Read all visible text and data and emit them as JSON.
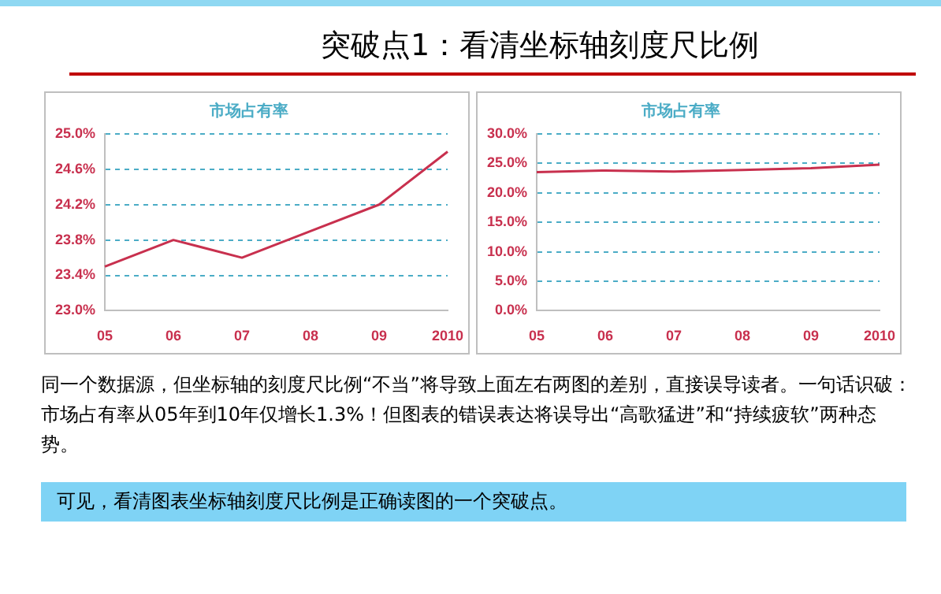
{
  "chart_data": [
    {
      "type": "other",
      "title": "突破点1：看清坐标轴刻度尺比例"
    },
    {
      "type": "line",
      "title": "市场占有率",
      "categories": [
        "05",
        "06",
        "07",
        "08",
        "09",
        "2010"
      ],
      "series": [
        {
          "color": "#c8304e",
          "values": [
            23.5,
            23.8,
            23.6,
            23.9,
            24.2,
            24.8
          ]
        }
      ],
      "ylim": [
        23.0,
        25.0
      ],
      "yticks": [
        {
          "value": 23.0,
          "label": "23.0%"
        },
        {
          "value": 23.4,
          "label": "23.4%"
        },
        {
          "value": 23.8,
          "label": "23.8%"
        },
        {
          "value": 24.2,
          "label": "24.2%"
        },
        {
          "value": 24.6,
          "label": "24.6%"
        },
        {
          "value": 25.0,
          "label": "25.0%"
        }
      ],
      "grid": "y",
      "legend": false,
      "marker": "none",
      "line_style": "solid"
    },
    {
      "type": "line",
      "title": "市场占有率",
      "categories": [
        "05",
        "06",
        "07",
        "08",
        "09",
        "2010"
      ],
      "series": [
        {
          "color": "#c8304e",
          "values": [
            23.5,
            23.8,
            23.6,
            23.9,
            24.2,
            24.8
          ]
        }
      ],
      "ylim": [
        0,
        30
      ],
      "yticks": [
        {
          "value": 0,
          "label": "0.0%"
        },
        {
          "value": 5,
          "label": "5.0%"
        },
        {
          "value": 10,
          "label": "10.0%"
        },
        {
          "value": 15,
          "label": "15.0%"
        },
        {
          "value": 20,
          "label": "20.0%"
        },
        {
          "value": 25,
          "label": "25.0%"
        },
        {
          "value": 30,
          "label": "30.0%"
        }
      ],
      "grid": "y",
      "legend": false,
      "marker": "none",
      "line_style": "solid"
    },
    {
      "type": "other",
      "annotations": [
        "同一个数据源，但坐标轴的刻度尺比例“不当”将导致上面左右两图的差别，直接误导读者。一句话识破：市场占有率从05年到10年仅增长1.3%！但图表的错误表达将误导出“高歌猛进”和“持续疲软”两种态势。",
        "可见，看清图表坐标轴刻度尺比例是正确读图的一个突破点。"
      ]
    }
  ]
}
